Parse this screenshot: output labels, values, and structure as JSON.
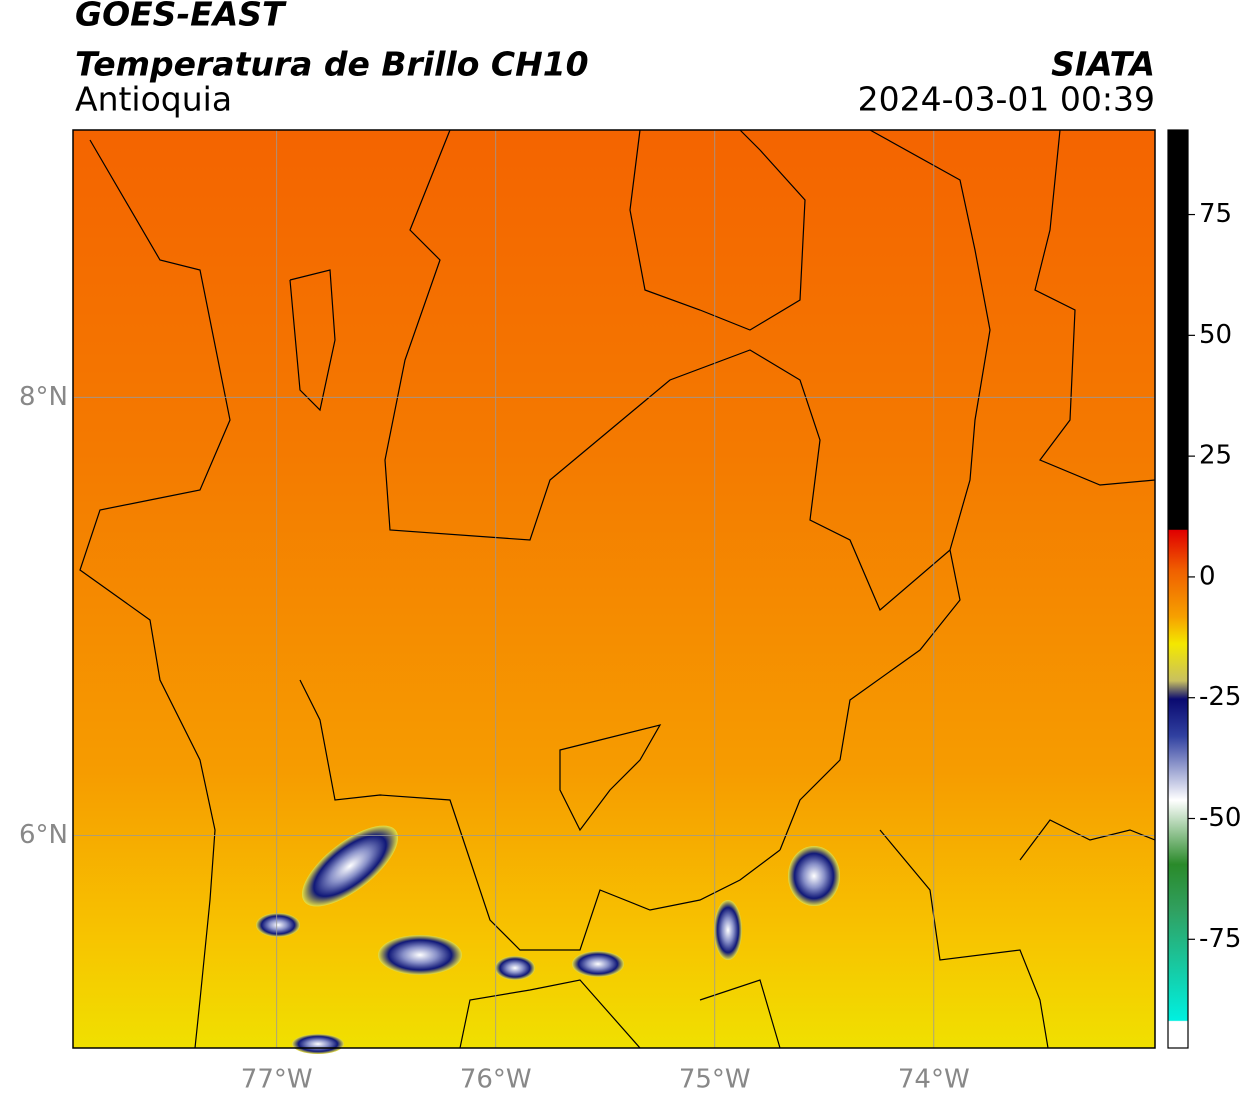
{
  "header": {
    "satellite": "GOES-EAST",
    "product": "Temperatura de Brillo CH10",
    "region": "Antioquia",
    "source": "SIATA",
    "datetime": "2024-03-01 00:39"
  },
  "map": {
    "xlim": [
      -77.93,
      -72.99
    ],
    "ylim": [
      5.03,
      9.22
    ],
    "xticks": [
      {
        "value": -77,
        "label": "77°W"
      },
      {
        "value": -76,
        "label": "76°W"
      },
      {
        "value": -75,
        "label": "75°W"
      },
      {
        "value": -74,
        "label": "74°W"
      }
    ],
    "yticks": [
      {
        "value": 8,
        "label": "8°N"
      },
      {
        "value": 6,
        "label": "6°N"
      }
    ]
  },
  "colorbar": {
    "lim": [
      -97.5,
      92.5
    ],
    "ticks": [
      75,
      50,
      25,
      0,
      -25,
      -50,
      -75
    ]
  }
}
